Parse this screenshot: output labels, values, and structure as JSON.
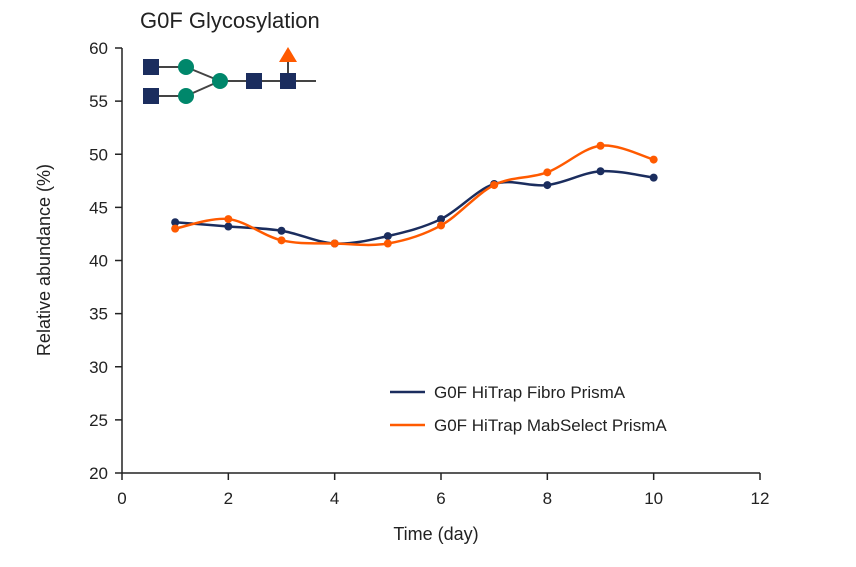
{
  "chart_data": {
    "type": "line",
    "title": "G0F Glycosylation",
    "xlabel": "Time (day)",
    "ylabel": "Relative abundance (%)",
    "xlim": [
      0,
      12
    ],
    "ylim": [
      20,
      60
    ],
    "xticks": [
      0,
      2,
      4,
      6,
      8,
      10,
      12
    ],
    "yticks": [
      20,
      25,
      30,
      35,
      40,
      45,
      50,
      55,
      60
    ],
    "grid": false,
    "legend_position": "bottom-right",
    "x": [
      1,
      2,
      3,
      4,
      5,
      6,
      7,
      8,
      9,
      10
    ],
    "series": [
      {
        "name": "G0F HiTrap Fibro PrismA",
        "color": "#1b2d5e",
        "values": [
          43.6,
          43.2,
          42.8,
          41.6,
          42.3,
          43.9,
          47.2,
          47.1,
          48.4,
          47.8
        ]
      },
      {
        "name": "G0F HiTrap MabSelect PrismA",
        "color": "#ff5a00",
        "values": [
          43.0,
          43.9,
          41.9,
          41.6,
          41.6,
          43.3,
          47.1,
          48.3,
          50.8,
          49.5
        ]
      }
    ],
    "glycan_icon": {
      "square_color": "#1b2d5e",
      "circle_color": "#00876b",
      "triangle_color": "#ff5a00"
    }
  }
}
